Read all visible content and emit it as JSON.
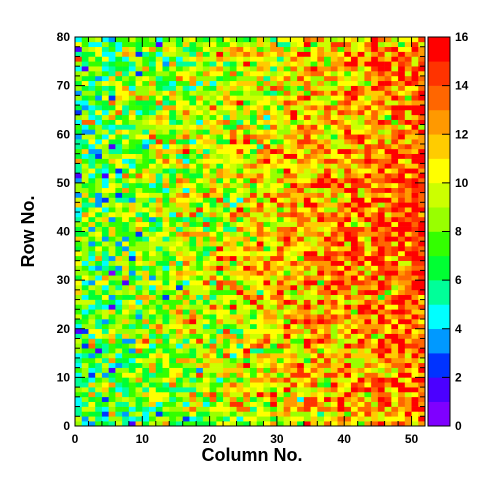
{
  "chart_data": {
    "type": "heatmap",
    "title": "",
    "xlabel": "Column No.",
    "ylabel": "Row No.",
    "x_range": [
      0,
      52
    ],
    "y_range": [
      0,
      80
    ],
    "x_ticks": [
      "0",
      "10",
      "20",
      "30",
      "40",
      "50"
    ],
    "y_ticks": [
      "0",
      "10",
      "20",
      "30",
      "40",
      "50",
      "60",
      "70",
      "80"
    ],
    "n_columns": 52,
    "n_rows": 80,
    "z_range": [
      0,
      16
    ],
    "colorbar_ticks": [
      "0",
      "2",
      "4",
      "6",
      "8",
      "10",
      "12",
      "14",
      "16"
    ],
    "colorscale": [
      "#7f00ff",
      "#4b00ff",
      "#0033ff",
      "#0099ff",
      "#00ffff",
      "#00ff99",
      "#00ff33",
      "#33ff00",
      "#99ff00",
      "#ccff00",
      "#ffff00",
      "#ffcc00",
      "#ff9900",
      "#ff6600",
      "#ff3300",
      "#ff0000"
    ],
    "trend": {
      "value_at_column_0": 7.0,
      "value_at_column_51": 13.5,
      "peak_rows_near": 40,
      "pixel_spread": 2.4
    },
    "grid": false,
    "legend": "colorbar-right"
  }
}
